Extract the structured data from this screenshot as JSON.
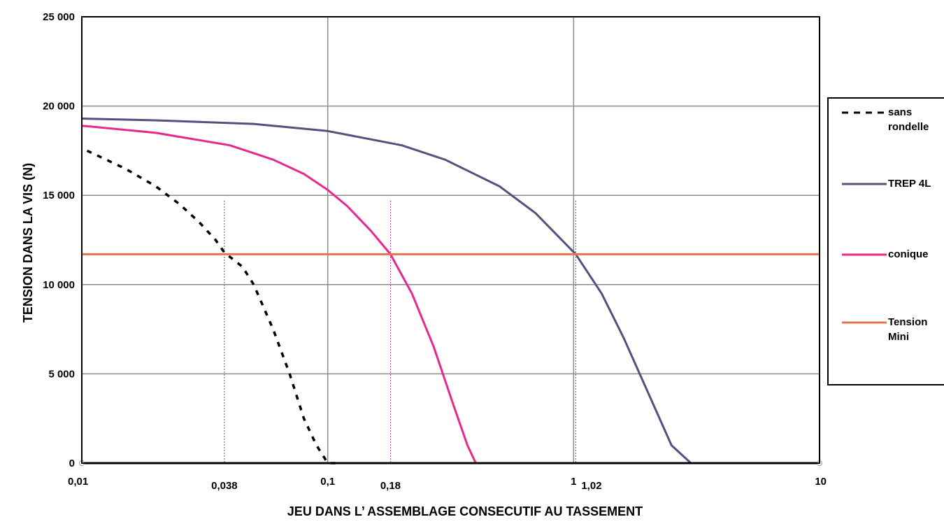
{
  "chart_data": {
    "type": "line",
    "xscale": "log",
    "xlim": [
      0.01,
      10
    ],
    "ylim": [
      0,
      25000
    ],
    "xlabel": "JEU DANS L’ ASSEMBLAGE CONSECUTIF AU TASSEMENT",
    "ylabel": "TENSION DANS LA VIS (N)",
    "grid": true,
    "legend_position": "right",
    "x_major_ticks": [
      0.01,
      0.1,
      1,
      10
    ],
    "x_tick_labels": [
      "0,01",
      "0,1",
      "1",
      "10"
    ],
    "x_annotation_ticks": [
      0.038,
      0.18,
      1.02
    ],
    "x_annotation_labels": [
      "0,038",
      "0,18",
      "1,02"
    ],
    "y_ticks": [
      0,
      5000,
      10000,
      15000,
      20000,
      25000
    ],
    "y_tick_labels": [
      "0",
      "5 000",
      "10 000",
      "15 000",
      "20 000",
      "25 000"
    ],
    "series": [
      {
        "name": "sans rondelle",
        "color": "#000000",
        "dashed": true,
        "x": [
          0.0105,
          0.015,
          0.02,
          0.025,
          0.03,
          0.035,
          0.038,
          0.045,
          0.05,
          0.06,
          0.07,
          0.08,
          0.09,
          0.1,
          0.11
        ],
        "y": [
          17500,
          16500,
          15500,
          14500,
          13500,
          12500,
          11800,
          11000,
          10000,
          7500,
          5000,
          2500,
          1000,
          0,
          0
        ]
      },
      {
        "name": "TREP 4L",
        "color": "#55507e",
        "dashed": false,
        "x": [
          0.01,
          0.02,
          0.05,
          0.1,
          0.2,
          0.3,
          0.5,
          0.7,
          1.02,
          1.3,
          1.6,
          2,
          2.5,
          3
        ],
        "y": [
          19300,
          19200,
          19000,
          18600,
          17800,
          17000,
          15500,
          14000,
          11700,
          9500,
          7000,
          4000,
          1000,
          0
        ]
      },
      {
        "name": "conique",
        "color": "#e8288c",
        "dashed": false,
        "x": [
          0.01,
          0.02,
          0.04,
          0.06,
          0.08,
          0.1,
          0.12,
          0.15,
          0.18,
          0.22,
          0.27,
          0.32,
          0.37,
          0.4
        ],
        "y": [
          18900,
          18500,
          17800,
          17000,
          16200,
          15300,
          14400,
          13000,
          11700,
          9500,
          6500,
          3500,
          1000,
          0
        ]
      },
      {
        "name": "Tension Mini",
        "color": "#e8734a",
        "dashed": false,
        "x": [
          0.01,
          10
        ],
        "y": [
          11700,
          11700
        ]
      }
    ],
    "flat_tail": [
      {
        "series": "conique",
        "x": [
          0.4,
          10
        ]
      }
    ],
    "legend": [
      {
        "label_lines": [
          "sans",
          "rondelle"
        ],
        "color": "#000000",
        "dashed": true
      },
      {
        "label_lines": [
          "TREP 4L"
        ],
        "color": "#55507e",
        "dashed": false
      },
      {
        "label_lines": [
          "conique"
        ],
        "color": "#e8288c",
        "dashed": false
      },
      {
        "label_lines": [
          "Tension",
          "Mini"
        ],
        "color": "#e8734a",
        "dashed": false
      }
    ]
  }
}
